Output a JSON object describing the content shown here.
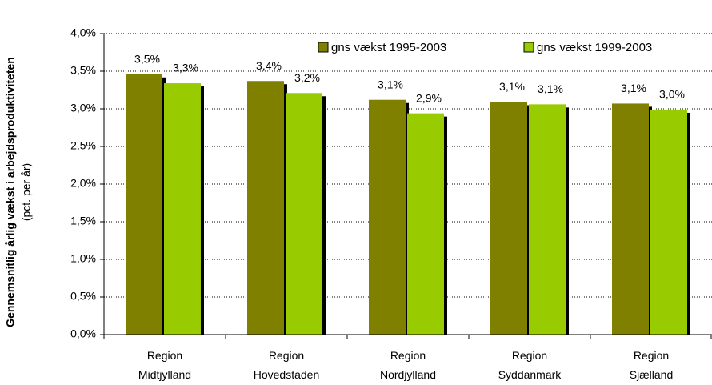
{
  "chart_data": {
    "type": "bar",
    "ylabel": [
      "Gennemsnitlig årlig vækst i arbejdsproduktiviteten",
      "(pct. per år)"
    ],
    "categories": [
      [
        "Region",
        "Midtjylland"
      ],
      [
        "Region",
        "Hovedstaden"
      ],
      [
        "Region",
        "Nordjylland"
      ],
      [
        "Region",
        "Syddanmark"
      ],
      [
        "Region",
        "Sjælland"
      ]
    ],
    "series": [
      {
        "name": "gns vækst 1995-2003",
        "color": "#808000",
        "values": [
          3.46,
          3.37,
          3.12,
          3.09,
          3.07
        ],
        "value_labels": [
          "3,5%",
          "3,4%",
          "3,1%",
          "3,1%",
          "3,1%"
        ]
      },
      {
        "name": "gns vækst 1999-2003",
        "color": "#99cc00",
        "values": [
          3.34,
          3.21,
          2.94,
          3.06,
          2.99
        ],
        "value_labels": [
          "3,3%",
          "3,2%",
          "2,9%",
          "3,1%",
          "3,0%"
        ]
      }
    ],
    "ylim": [
      0,
      4
    ],
    "yticks": [
      {
        "value": 0,
        "label": "0,0%"
      },
      {
        "value": 0.5,
        "label": "0,5%"
      },
      {
        "value": 1,
        "label": "1,0%"
      },
      {
        "value": 1.5,
        "label": "1,5%"
      },
      {
        "value": 2,
        "label": "2,0%"
      },
      {
        "value": 2.5,
        "label": "2,5%"
      },
      {
        "value": 3,
        "label": "3,0%"
      },
      {
        "value": 3.5,
        "label": "3,5%"
      },
      {
        "value": 4,
        "label": "4,0%"
      }
    ],
    "grid": true,
    "legend": "top-right"
  }
}
